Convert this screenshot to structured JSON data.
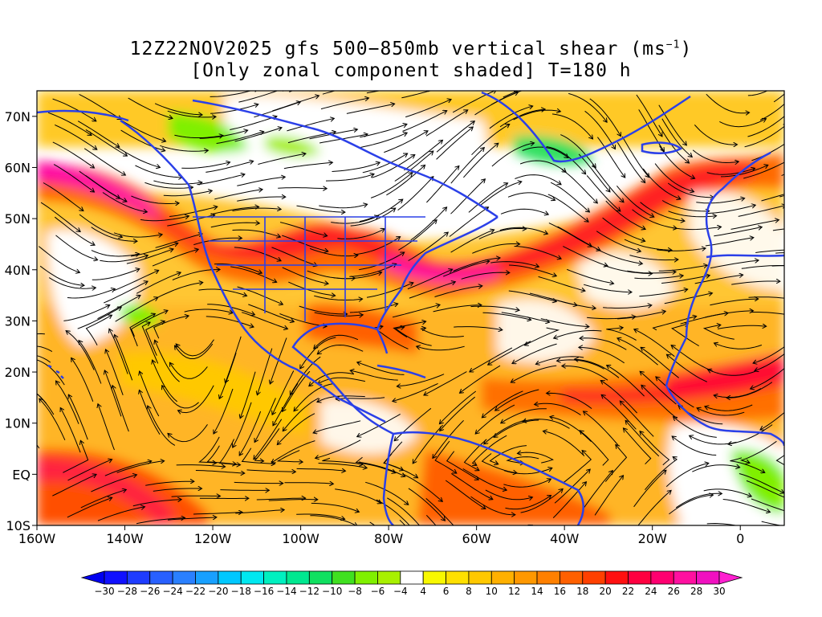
{
  "title": {
    "line1_prefix": "12Z22NOV2025 gfs 500−850mb vertical shear (ms",
    "line1_sup": "−1",
    "line1_suffix": ")",
    "line2": "[Only zonal component shaded] T=180 h"
  },
  "axes": {
    "lat_labels": [
      "70N",
      "60N",
      "50N",
      "40N",
      "30N",
      "20N",
      "10N",
      "EQ",
      "10S"
    ],
    "lat_values": [
      70,
      60,
      50,
      40,
      30,
      20,
      10,
      0,
      -10
    ],
    "lon_labels": [
      "160W",
      "140W",
      "120W",
      "100W",
      "80W",
      "60W",
      "40W",
      "20W",
      "0"
    ],
    "lon_values": [
      -160,
      -140,
      -120,
      -100,
      -80,
      -60,
      -40,
      -20,
      0
    ],
    "lat_range": [
      -10,
      75
    ],
    "lon_range": [
      -160,
      10
    ]
  },
  "colorbar": {
    "labels": [
      "−30",
      "−28",
      "−26",
      "−24",
      "−22",
      "−20",
      "−18",
      "−16",
      "−14",
      "−12",
      "−10",
      "−8",
      "−6",
      "−4",
      "4",
      "6",
      "8",
      "10",
      "12",
      "14",
      "16",
      "18",
      "20",
      "22",
      "24",
      "26",
      "28",
      "30"
    ],
    "colors": [
      "#1010ff",
      "#1e3cff",
      "#2860ff",
      "#2a80ff",
      "#18a0ff",
      "#00c8ff",
      "#00e8f0",
      "#00f0c0",
      "#00e890",
      "#10e060",
      "#40e020",
      "#80f000",
      "#a8f000",
      "#ffffff",
      "#f8f800",
      "#ffe000",
      "#ffc800",
      "#ffb000",
      "#ff9800",
      "#ff8000",
      "#ff6000",
      "#ff4000",
      "#ff1010",
      "#ff0040",
      "#ff0070",
      "#ff10a0",
      "#f010c0"
    ],
    "left_color": "#0000f0",
    "right_color": "#ff20d0"
  },
  "colors": {
    "coastline": "#2b40e8",
    "streamline": "#000000",
    "background_field": "#ffffff"
  }
}
